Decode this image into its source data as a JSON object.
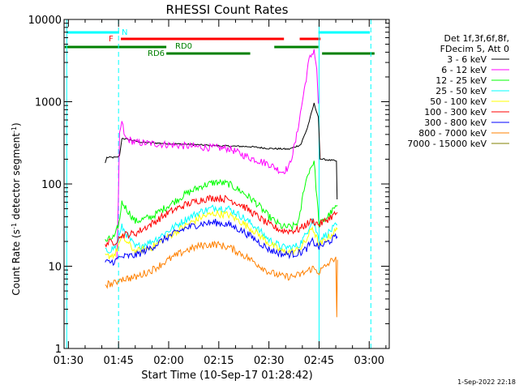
{
  "timestamp": "1-Sep-2022 22:18",
  "chart_data": {
    "type": "line",
    "title": "RHESSI Count Rates",
    "xlabel": "Start Time (10-Sep-17 01:28:42)",
    "ylabel_parts": [
      "Count Rate (s",
      "-1",
      " detector segment",
      "-1",
      ")"
    ],
    "y_scale": "log",
    "ylim": [
      1,
      10000
    ],
    "xlim_minutes": [
      88.7,
      186
    ],
    "x_ticks": [
      {
        "label": "01:30",
        "min": 90
      },
      {
        "label": "01:45",
        "min": 105
      },
      {
        "label": "02:00",
        "min": 120
      },
      {
        "label": "02:15",
        "min": 135
      },
      {
        "label": "02:30",
        "min": 150
      },
      {
        "label": "02:45",
        "min": 165
      },
      {
        "label": "03:00",
        "min": 180
      }
    ],
    "y_ticks": [
      {
        "label": "1",
        "value": 1
      },
      {
        "label": "10",
        "value": 10
      },
      {
        "label": "100",
        "value": 100
      },
      {
        "label": "1000",
        "value": 1000
      },
      {
        "label": "10000",
        "value": 10000
      }
    ],
    "legend": {
      "placement": "right",
      "header": [
        "Det 1f,3f,6f,8f,",
        "FDecim 5, Att 0"
      ],
      "entries": [
        {
          "label": "3 - 6 keV",
          "color": "#000000"
        },
        {
          "label": "6 - 12 keV",
          "color": "#ff00ff"
        },
        {
          "label": "12 - 25 keV",
          "color": "#00ff00"
        },
        {
          "label": "25 - 50 keV",
          "color": "#00ffff"
        },
        {
          "label": "50 - 100 keV",
          "color": "#ffff00"
        },
        {
          "label": "100 - 300 keV",
          "color": "#ff0000"
        },
        {
          "label": "300 - 800 keV",
          "color": "#0000ff"
        },
        {
          "label": "800 - 7000 keV",
          "color": "#ff8000"
        },
        {
          "label": "7000 - 15000 keV",
          "color": "#808000"
        }
      ]
    },
    "flag_bars": [
      {
        "label": "N",
        "color": "#00ffff",
        "segments": [
          [
            89.5,
            105.2
          ],
          [
            164.8,
            180.2
          ]
        ]
      },
      {
        "label": "F",
        "color": "#ff0000",
        "segments": [
          [
            105.7,
            154.5
          ],
          [
            159.2,
            165.4
          ]
        ]
      },
      {
        "label": "RD0",
        "color": "#008000",
        "segments": [
          [
            88.9,
            119.3
          ],
          [
            151.6,
            164.8
          ]
        ]
      },
      {
        "label": "RD6",
        "color": "#008000",
        "segments": [
          [
            119.3,
            144.4
          ],
          [
            165.9,
            181.6
          ]
        ]
      }
    ],
    "vertical_markers": [
      {
        "min": 89.5,
        "style": "solid",
        "color": "#00ffff"
      },
      {
        "min": 105.0,
        "style": "dashed",
        "color": "#00ffff"
      },
      {
        "min": 165.0,
        "style": "solid",
        "color": "#00ffff"
      },
      {
        "min": 180.5,
        "style": "dashed",
        "color": "#00ffff"
      }
    ],
    "series": [
      {
        "name": "3 - 6 keV",
        "color": "#000000",
        "x": [
          101,
          101.5,
          104.5,
          105.3,
          106,
          112,
          120,
          128,
          136,
          144,
          150,
          156,
          159.5,
          161.5,
          163.5,
          164.8,
          165.3,
          166,
          170.2,
          170.4
        ],
        "y": [
          180,
          210,
          210,
          220,
          360,
          320,
          310,
          300,
          290,
          285,
          270,
          265,
          300,
          480,
          950,
          650,
          200,
          200,
          190,
          65
        ]
      },
      {
        "name": "6 - 12 keV",
        "color": "#ff00ff",
        "x": [
          104.5,
          104.9,
          105.3,
          106,
          107,
          110,
          120,
          130,
          138,
          144,
          150,
          154,
          156,
          158,
          160,
          162,
          163.5,
          164.3,
          164.8
        ],
        "y": [
          12,
          55,
          420,
          560,
          360,
          320,
          300,
          280,
          270,
          210,
          175,
          140,
          160,
          330,
          1000,
          3200,
          4300,
          2500,
          950
        ]
      },
      {
        "name": "12 - 25 keV",
        "color": "#00ff00",
        "x": [
          101,
          104,
          105.4,
          106,
          110,
          115,
          120,
          125,
          130,
          134,
          138,
          142,
          146,
          150,
          154,
          157,
          159,
          160.5,
          162,
          163.5,
          165,
          167,
          170.5
        ],
        "y": [
          20,
          23,
          38,
          60,
          35,
          40,
          55,
          75,
          95,
          105,
          100,
          80,
          60,
          40,
          30,
          30,
          35,
          90,
          145,
          190,
          32,
          38,
          55
        ]
      },
      {
        "name": "25 - 50 keV",
        "color": "#00ffff",
        "x": [
          101,
          104,
          105.4,
          106,
          110,
          115,
          120,
          125,
          130,
          134,
          138,
          142,
          146,
          150,
          154,
          157,
          159,
          161,
          163,
          165,
          167,
          170.5
        ],
        "y": [
          15,
          17,
          25,
          30,
          17,
          20,
          27,
          37,
          47,
          52,
          50,
          40,
          30,
          21,
          17,
          17,
          18,
          24,
          38,
          21,
          24,
          32
        ]
      },
      {
        "name": "50 - 100 keV",
        "color": "#ffff00",
        "x": [
          101,
          104,
          105.4,
          106,
          110,
          115,
          120,
          125,
          130,
          134,
          138,
          142,
          146,
          150,
          154,
          157,
          159,
          161,
          163,
          165,
          167,
          170.5
        ],
        "y": [
          13,
          14,
          20,
          23,
          15,
          17,
          23,
          31,
          40,
          44,
          42,
          34,
          26,
          19,
          15,
          15,
          16,
          20,
          30,
          18,
          21,
          28
        ]
      },
      {
        "name": "100 - 300 keV",
        "color": "#ff0000",
        "x": [
          101,
          104,
          105.4,
          106,
          110,
          115,
          120,
          125,
          130,
          134,
          138,
          142,
          146,
          150,
          154,
          157,
          159,
          161,
          163,
          165,
          167,
          170.5
        ],
        "y": [
          19,
          20,
          22,
          24,
          25,
          33,
          45,
          56,
          65,
          68,
          65,
          55,
          42,
          32,
          27,
          27,
          28,
          32,
          36,
          32,
          36,
          45
        ]
      },
      {
        "name": "300 - 800 keV",
        "color": "#0000ff",
        "x": [
          101,
          104,
          105.4,
          106,
          110,
          115,
          120,
          125,
          130,
          134,
          138,
          142,
          146,
          150,
          154,
          157,
          159,
          161,
          163,
          165,
          167,
          170.5
        ],
        "y": [
          11,
          11.5,
          13,
          13,
          13.5,
          17,
          23,
          29,
          33,
          34,
          32,
          27,
          21,
          16,
          14,
          14,
          14.5,
          16,
          20,
          17,
          19,
          23
        ]
      },
      {
        "name": "800 - 7000 keV",
        "color": "#ff8000",
        "x": [
          101,
          104,
          105.4,
          106,
          110,
          115,
          120,
          125,
          130,
          134,
          138,
          142,
          146,
          150,
          154,
          157,
          159,
          161,
          163,
          165,
          167,
          170,
          170.3,
          170.5
        ],
        "y": [
          6,
          6.2,
          7,
          7,
          7.3,
          9,
          12,
          15.5,
          18,
          18.5,
          17,
          14,
          11,
          8.5,
          7.5,
          7.5,
          7.8,
          8.5,
          9.5,
          8.5,
          10,
          13,
          2.4,
          12
        ]
      },
      {
        "name": "7000 - 15000 keV",
        "color": "#808000",
        "x": [],
        "y": []
      }
    ]
  }
}
